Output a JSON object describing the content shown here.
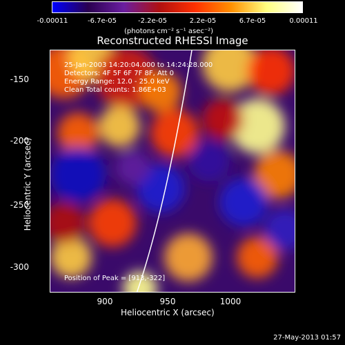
{
  "colorbar": {
    "ticks": [
      "-0.00011",
      "-6.7e-05",
      "-2.2e-05",
      "2.2e-05",
      "6.7e-05",
      "0.00011"
    ],
    "units": "(photons cm⁻² s⁻¹ asec⁻²)",
    "colors": [
      "#0000ff",
      "#2a0050",
      "#6a1ea0",
      "#b01010",
      "#ff3000",
      "#ff9000",
      "#ffff80",
      "#ffffff"
    ]
  },
  "title": "Reconstructed RHESSI Image",
  "info": {
    "time_range": "25-Jan-2003 14:20:04.000 to 14:24:28.000",
    "detectors": "Detectors: 4F 5F 6F 7F 8F, Att 0",
    "energy": "Energy Range: 12.0 - 25.0 keV",
    "clean": "Clean    Total counts: 1.86E+03",
    "peak": "Position of Peak = [913,-322]"
  },
  "axes": {
    "xlabel": "Heliocentric X (arcsec)",
    "ylabel": "Heliocentric Y (arcsec)",
    "xticks": [
      "900",
      "950",
      "1000"
    ],
    "yticks": [
      "-150",
      "-200",
      "-250",
      "-300"
    ]
  },
  "timestamp": "27-May-2013 01:57"
}
